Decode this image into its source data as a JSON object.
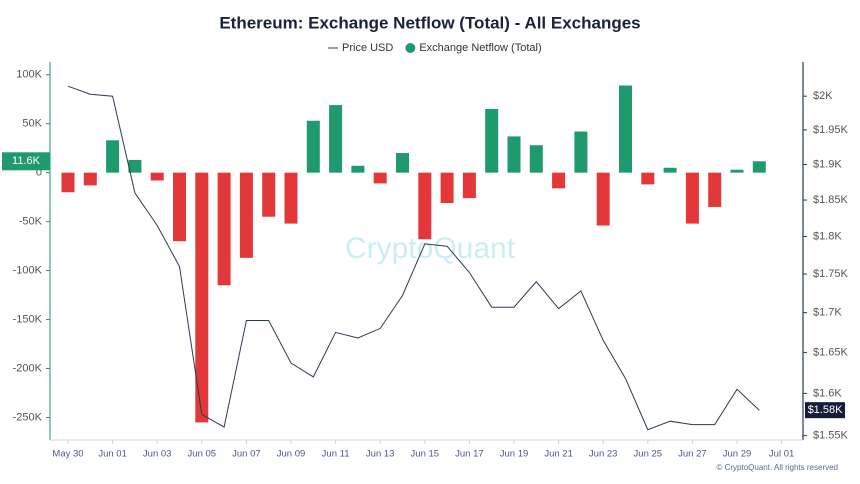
{
  "chart_data": {
    "type": "bar",
    "title": "Ethereum: Exchange Netflow (Total) - All Exchanges",
    "watermark": "CryptoQuant",
    "copyright": "© CryptoQuant. All rights reserved",
    "categories": [
      "May 30",
      null,
      "Jun 01",
      null,
      "Jun 03",
      null,
      "Jun 05",
      null,
      "Jun 07",
      null,
      "Jun 09",
      null,
      "Jun 11",
      null,
      "Jun 13",
      null,
      "Jun 15",
      null,
      "Jun 17",
      null,
      "Jun 19",
      null,
      "Jun 21",
      null,
      "Jun 23",
      null,
      "Jun 25",
      null,
      "Jun 27",
      null,
      "Jun 29",
      null,
      "Jul 01"
    ],
    "series": [
      {
        "name": "Price USD",
        "type": "line",
        "axis": "y2",
        "color": "#2c3b52",
        "values": [
          2015,
          2003,
          2000,
          1860,
          1815,
          1760,
          1575,
          1560,
          1690,
          1690,
          1637,
          1620,
          1675,
          1668,
          1680,
          1722,
          1790,
          1787,
          1752,
          1707,
          1707,
          1740,
          1705,
          1728,
          1665,
          1618,
          1557,
          1567,
          1563,
          1563,
          1605,
          1580,
          null
        ],
        "value_labels": [
          null,
          null,
          null,
          null,
          null,
          null,
          null,
          null,
          null,
          null,
          null,
          null,
          null,
          null,
          null,
          null,
          null,
          null,
          null,
          null,
          null,
          null,
          null,
          null,
          null,
          null,
          null,
          null,
          null,
          null,
          null,
          "$1.58K",
          null
        ]
      },
      {
        "name": "Exchange Netflow (Total)",
        "type": "bar",
        "color": "#1e9a6d",
        "negative_color": "#e2383a",
        "values": [
          -20000,
          -13000,
          33000,
          13000,
          -8000,
          -70000,
          -255000,
          -115000,
          -87000,
          -45000,
          -52000,
          53000,
          69000,
          7000,
          -11000,
          20000,
          -68000,
          -31000,
          -26000,
          65000,
          37000,
          28000,
          -16000,
          42000,
          -54000,
          89000,
          -12000,
          5000,
          -52000,
          -35000,
          3000,
          11600,
          null
        ],
        "value_labels": [
          null,
          null,
          null,
          null,
          null,
          null,
          null,
          null,
          null,
          null,
          null,
          null,
          null,
          null,
          null,
          null,
          null,
          null,
          null,
          null,
          null,
          null,
          null,
          null,
          null,
          null,
          null,
          null,
          null,
          null,
          null,
          "11.6K",
          null
        ]
      }
    ],
    "ylim": [
      -273000,
      113000
    ],
    "yticks": [
      {
        "value": 100000,
        "label": "100K"
      },
      {
        "value": 50000,
        "label": "50K"
      },
      0,
      {
        "value": -50000,
        "label": "-50K"
      },
      {
        "value": -100000,
        "label": "-100K"
      },
      {
        "value": -150000,
        "label": "-150K"
      },
      {
        "value": -200000,
        "label": "-200K"
      },
      {
        "value": -250000,
        "label": "-250K"
      }
    ],
    "y2lim": [
      1545,
      2052
    ],
    "y2log": true,
    "y2ticks": [
      {
        "value": 2000,
        "label": "$2K"
      },
      {
        "value": 1950,
        "label": "$1.95K"
      },
      {
        "value": 1900,
        "label": "$1.9K"
      },
      {
        "value": 1850,
        "label": "$1.85K"
      },
      {
        "value": 1800,
        "label": "$1.8K"
      },
      {
        "value": 1750,
        "label": "$1.75K"
      },
      {
        "value": 1700,
        "label": "$1.7K"
      },
      {
        "value": 1650,
        "label": "$1.65K"
      },
      {
        "value": 1600,
        "label": "$1.6K"
      },
      {
        "value": 1550,
        "label": "$1.55K"
      }
    ],
    "grid": false
  }
}
